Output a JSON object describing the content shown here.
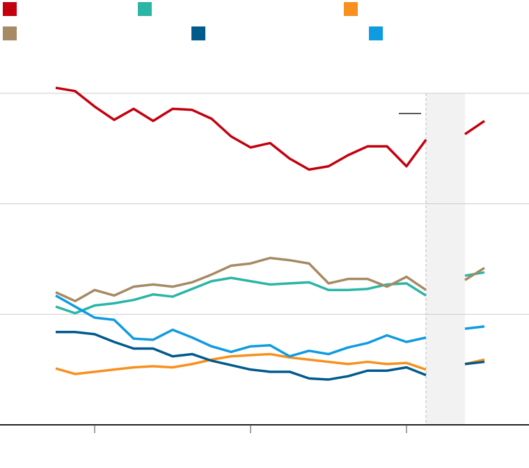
{
  "chart_data": {
    "type": "line",
    "x": [
      0,
      1,
      2,
      3,
      4,
      5,
      6,
      7,
      8,
      9,
      10,
      11,
      12,
      13,
      14,
      15,
      16,
      17,
      18,
      19,
      20,
      21,
      22
    ],
    "xlim": [
      -2.857,
      24.286
    ],
    "xticks": [
      2,
      10,
      18
    ],
    "ylim": [
      0,
      30
    ],
    "yticks": [
      0,
      10,
      20,
      30
    ],
    "grid": true,
    "shade": [
      19,
      21
    ],
    "series": [
      {
        "color": "#c4000e",
        "values": [
          30.5,
          30.2,
          28.8,
          27.6,
          28.6,
          27.5,
          28.6,
          28.5,
          27.7,
          26.1,
          25.1,
          25.5,
          24.1,
          23.1,
          23.4,
          24.4,
          25.2,
          25.2,
          23.4,
          25.8,
          null,
          26.3,
          27.5
        ]
      },
      {
        "color": "#2bb5a5",
        "values": [
          10.7,
          10.1,
          10.8,
          11.0,
          11.3,
          11.8,
          11.6,
          12.3,
          13.0,
          13.3,
          13.0,
          12.7,
          12.8,
          12.9,
          12.2,
          12.2,
          12.3,
          12.7,
          12.8,
          11.7,
          null,
          13.5,
          13.8
        ]
      },
      {
        "color": "#f7901e",
        "values": [
          5.1,
          4.6,
          4.8,
          5.0,
          5.2,
          5.3,
          5.2,
          5.5,
          5.9,
          6.2,
          6.3,
          6.4,
          6.1,
          5.9,
          5.7,
          5.5,
          5.7,
          5.5,
          5.6,
          5.0,
          null,
          5.5,
          5.9
        ]
      },
      {
        "color": "#a58a64",
        "values": [
          12.0,
          11.2,
          12.2,
          11.7,
          12.5,
          12.7,
          12.5,
          12.9,
          13.6,
          14.4,
          14.6,
          15.1,
          14.9,
          14.6,
          12.8,
          13.2,
          13.2,
          12.5,
          13.4,
          12.2,
          null,
          13.1,
          14.2
        ]
      },
      {
        "color": "#005a8c",
        "values": [
          8.4,
          8.4,
          8.2,
          7.5,
          6.9,
          6.9,
          6.2,
          6.4,
          5.8,
          5.4,
          5.0,
          4.8,
          4.8,
          4.2,
          4.1,
          4.4,
          4.9,
          4.9,
          5.2,
          4.5,
          null,
          5.5,
          5.7
        ]
      },
      {
        "color": "#0f9be0",
        "values": [
          11.7,
          10.7,
          9.7,
          9.5,
          7.8,
          7.7,
          8.6,
          7.9,
          7.1,
          6.6,
          7.1,
          7.2,
          6.2,
          6.7,
          6.4,
          7.0,
          7.4,
          8.1,
          7.5,
          7.9,
          null,
          8.7,
          8.9
        ]
      }
    ]
  }
}
